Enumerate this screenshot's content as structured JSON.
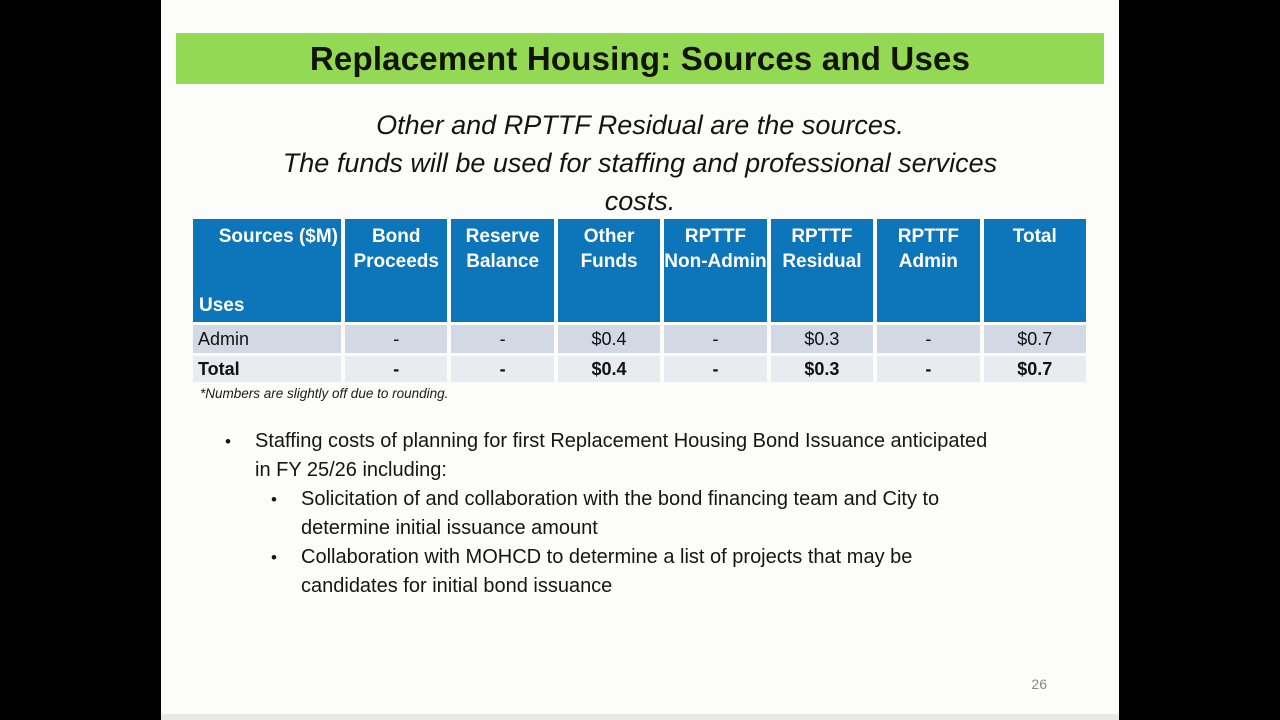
{
  "slide": {
    "title": "Replacement Housing: Sources and Uses",
    "subtitle_lines": [
      "Other and RPTTF Residual are the sources.",
      "The funds will be used for staffing and professional services",
      "costs."
    ],
    "footnote": "*Numbers are slightly off due to rounding.",
    "page_number": "26"
  },
  "table": {
    "corner_top": "Sources ($M)",
    "corner_bottom": "Uses",
    "headers": [
      "Bond Proceeds",
      "Reserve Balance",
      "Other Funds",
      "RPTTF Non-Admin",
      "RPTTF Residual",
      "RPTTF Admin",
      "Total"
    ],
    "rows": [
      {
        "label": "Admin",
        "values": [
          "-",
          "-",
          "$0.4",
          "-",
          "$0.3",
          "-",
          "$0.7"
        ]
      },
      {
        "label": "Total",
        "values": [
          "-",
          "-",
          "$0.4",
          "-",
          "$0.3",
          "-",
          "$0.7"
        ]
      }
    ]
  },
  "bullets": [
    {
      "text": "Staffing costs of planning for first Replacement Housing Bond Issuance anticipated\nin FY 25/26 including:",
      "children": [
        "Solicitation of and collaboration with the bond financing team and City to\ndetermine initial issuance amount",
        "Collaboration with MOHCD to determine a list of projects that may be\ncandidates for initial bond issuance"
      ]
    }
  ],
  "glyphs": {
    "bullet": "•"
  },
  "colors": {
    "banner_green": "#93d954",
    "header_blue": "#0d75b9",
    "row_admin_bg": "#d2d8e4",
    "row_total_bg": "#e9ebf1",
    "letterbox_black": "#000000",
    "slide_bg": "#fcfcfa",
    "page_number_gray": "#8a8a8a"
  }
}
